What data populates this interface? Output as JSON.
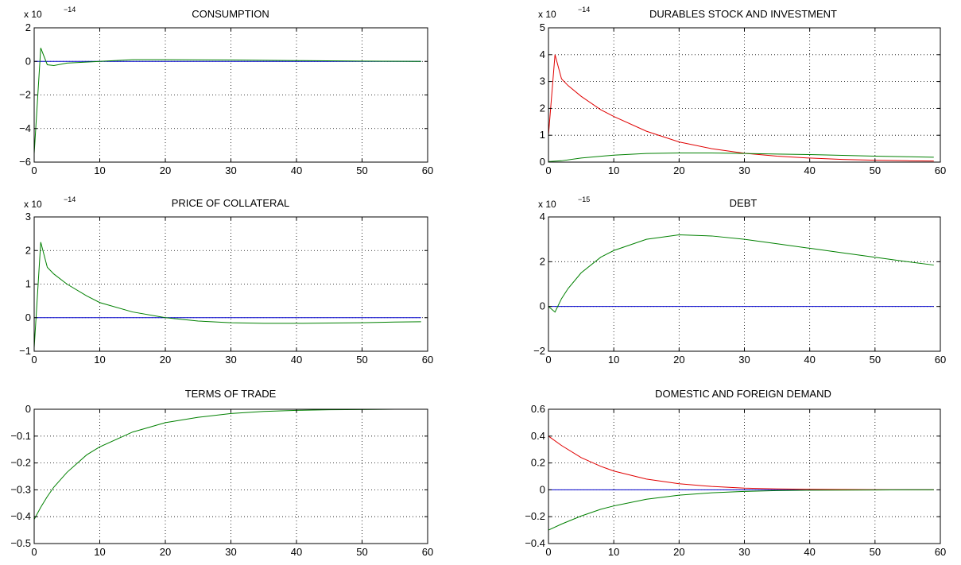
{
  "chart_data": [
    {
      "type": "line",
      "title": "CONSUMPTION",
      "exponent": {
        "base": "x 10",
        "power": "−14"
      },
      "xlim": [
        0,
        60
      ],
      "ylim": [
        -6,
        2
      ],
      "xticks": [
        0,
        10,
        20,
        30,
        40,
        50,
        60
      ],
      "yticks": [
        -6,
        -4,
        -2,
        0,
        2
      ],
      "grid": true,
      "series": [
        {
          "color": "#0000cc",
          "x": [
            0,
            59
          ],
          "y": [
            0,
            0
          ]
        },
        {
          "color": "#008000",
          "x": [
            0,
            1,
            2,
            3,
            5,
            10,
            15,
            20,
            30,
            40,
            50,
            59
          ],
          "y": [
            -5.5,
            0.8,
            -0.2,
            -0.25,
            -0.1,
            0.0,
            0.1,
            0.1,
            0.08,
            0.05,
            0.02,
            0.0
          ]
        }
      ]
    },
    {
      "type": "line",
      "title": "DURABLES STOCK AND INVESTMENT",
      "exponent": {
        "base": "x 10",
        "power": "−14"
      },
      "xlim": [
        0,
        60
      ],
      "ylim": [
        0,
        5
      ],
      "xticks": [
        0,
        10,
        20,
        30,
        40,
        50,
        60
      ],
      "yticks": [
        0,
        1,
        2,
        3,
        4,
        5
      ],
      "grid": true,
      "series": [
        {
          "color": "#0000cc",
          "x": [
            0,
            59
          ],
          "y": [
            0,
            0
          ]
        },
        {
          "color": "#e00000",
          "x": [
            0,
            1,
            2,
            3,
            5,
            8,
            10,
            15,
            20,
            25,
            30,
            35,
            40,
            45,
            50,
            55,
            59
          ],
          "y": [
            1.0,
            4.0,
            3.1,
            2.85,
            2.45,
            1.95,
            1.7,
            1.15,
            0.75,
            0.5,
            0.33,
            0.22,
            0.15,
            0.1,
            0.07,
            0.05,
            0.04
          ]
        },
        {
          "color": "#008000",
          "x": [
            0,
            2,
            5,
            10,
            15,
            20,
            25,
            30,
            35,
            40,
            45,
            50,
            55,
            59
          ],
          "y": [
            0.02,
            0.05,
            0.15,
            0.26,
            0.32,
            0.34,
            0.34,
            0.32,
            0.3,
            0.28,
            0.25,
            0.22,
            0.2,
            0.18
          ]
        }
      ]
    },
    {
      "type": "line",
      "title": "PRICE OF COLLATERAL",
      "exponent": {
        "base": "x 10",
        "power": "−14"
      },
      "xlim": [
        0,
        60
      ],
      "ylim": [
        -1,
        3
      ],
      "xticks": [
        0,
        10,
        20,
        30,
        40,
        50,
        60
      ],
      "yticks": [
        -1,
        0,
        1,
        2,
        3
      ],
      "grid": true,
      "series": [
        {
          "color": "#0000cc",
          "x": [
            0,
            59
          ],
          "y": [
            0,
            0
          ]
        },
        {
          "color": "#008000",
          "x": [
            0,
            1,
            2,
            3,
            5,
            8,
            10,
            15,
            20,
            25,
            30,
            35,
            40,
            45,
            50,
            55,
            59
          ],
          "y": [
            -0.9,
            2.25,
            1.5,
            1.3,
            1.0,
            0.65,
            0.45,
            0.17,
            0.0,
            -0.1,
            -0.15,
            -0.17,
            -0.17,
            -0.16,
            -0.15,
            -0.13,
            -0.12
          ]
        }
      ]
    },
    {
      "type": "line",
      "title": "DEBT",
      "exponent": {
        "base": "x 10",
        "power": "−15"
      },
      "xlim": [
        0,
        60
      ],
      "ylim": [
        -2,
        4
      ],
      "xticks": [
        0,
        10,
        20,
        30,
        40,
        50,
        60
      ],
      "yticks": [
        -2,
        0,
        2,
        4
      ],
      "grid": true,
      "series": [
        {
          "color": "#0000cc",
          "x": [
            0,
            59
          ],
          "y": [
            0,
            0
          ]
        },
        {
          "color": "#008000",
          "x": [
            0,
            1,
            2,
            3,
            5,
            8,
            10,
            15,
            20,
            25,
            30,
            35,
            40,
            45,
            50,
            55,
            59
          ],
          "y": [
            0,
            -0.25,
            0.35,
            0.8,
            1.5,
            2.2,
            2.5,
            3.0,
            3.2,
            3.15,
            3.0,
            2.8,
            2.6,
            2.4,
            2.2,
            2.0,
            1.85
          ]
        }
      ]
    },
    {
      "type": "line",
      "title": "TERMS OF TRADE",
      "xlim": [
        0,
        60
      ],
      "ylim": [
        -0.5,
        0
      ],
      "xticks": [
        0,
        10,
        20,
        30,
        40,
        50,
        60
      ],
      "yticks": [
        -0.5,
        -0.4,
        -0.3,
        -0.2,
        -0.1,
        0
      ],
      "ytick_labels": [
        "−0.5",
        "−0.4",
        "−0.3",
        "−0.2",
        "−0.1",
        "0"
      ],
      "grid": true,
      "series": [
        {
          "color": "#0000cc",
          "x": [
            0,
            59
          ],
          "y": [
            0,
            0
          ]
        },
        {
          "color": "#008000",
          "x": [
            0,
            1,
            2,
            3,
            5,
            8,
            10,
            15,
            20,
            25,
            30,
            35,
            40,
            45,
            50,
            55,
            59
          ],
          "y": [
            -0.41,
            -0.365,
            -0.325,
            -0.29,
            -0.235,
            -0.17,
            -0.14,
            -0.085,
            -0.05,
            -0.03,
            -0.016,
            -0.008,
            -0.004,
            -0.002,
            -0.001,
            0.0,
            0.0
          ]
        }
      ]
    },
    {
      "type": "line",
      "title": "DOMESTIC AND FOREIGN DEMAND",
      "xlim": [
        0,
        60
      ],
      "ylim": [
        -0.4,
        0.6
      ],
      "xticks": [
        0,
        10,
        20,
        30,
        40,
        50,
        60
      ],
      "yticks": [
        -0.4,
        -0.2,
        0,
        0.2,
        0.4,
        0.6
      ],
      "ytick_labels": [
        "−0.4",
        "−0.2",
        "0",
        "0.2",
        "0.4",
        "0.6"
      ],
      "grid": true,
      "series": [
        {
          "color": "#0000cc",
          "x": [
            0,
            59
          ],
          "y": [
            0,
            0
          ]
        },
        {
          "color": "#e00000",
          "x": [
            0,
            2,
            5,
            8,
            10,
            15,
            20,
            25,
            30,
            35,
            40,
            45,
            50,
            55,
            59
          ],
          "y": [
            0.4,
            0.33,
            0.24,
            0.175,
            0.14,
            0.08,
            0.045,
            0.025,
            0.013,
            0.007,
            0.004,
            0.002,
            0.001,
            0.0,
            0.0
          ]
        },
        {
          "color": "#008000",
          "x": [
            0,
            2,
            5,
            8,
            10,
            15,
            20,
            25,
            30,
            35,
            40,
            45,
            50,
            55,
            59
          ],
          "y": [
            -0.3,
            -0.255,
            -0.195,
            -0.145,
            -0.12,
            -0.07,
            -0.04,
            -0.022,
            -0.012,
            -0.006,
            -0.003,
            -0.002,
            -0.001,
            0.0,
            0.0
          ]
        }
      ]
    }
  ]
}
